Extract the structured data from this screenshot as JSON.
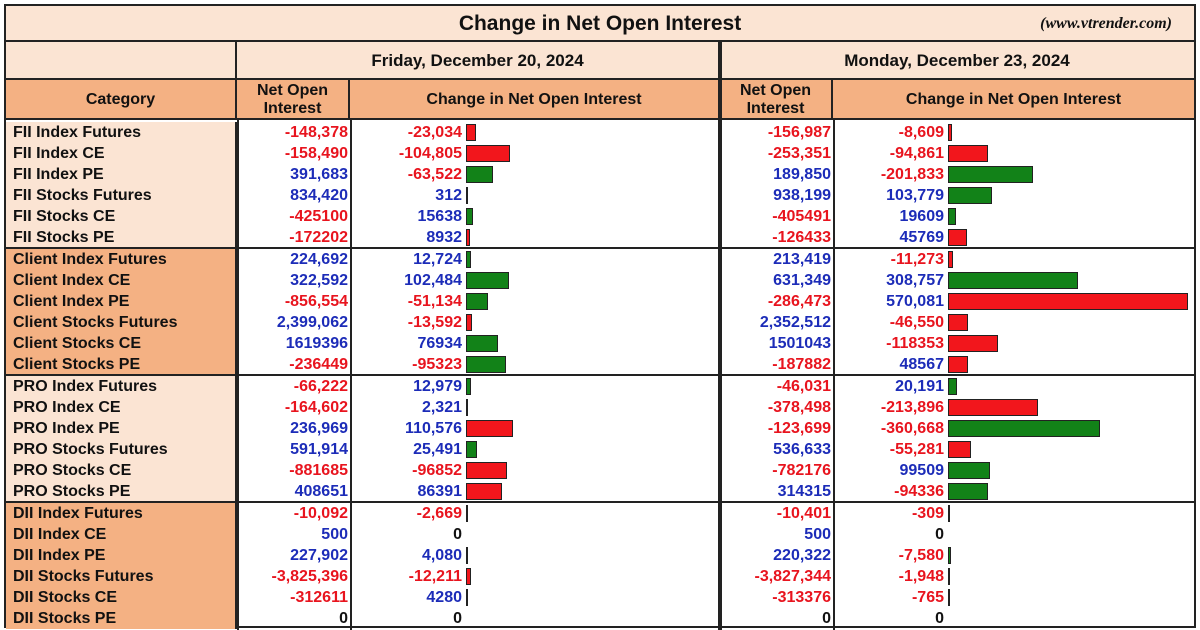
{
  "title": "Change in Net Open Interest",
  "site": "(www.vtrender.com)",
  "dates": [
    "Friday, December 20, 2024",
    "Monday, December 23, 2024"
  ],
  "headers": {
    "category": "Category",
    "net_oi": "Net Open Interest",
    "change": "Change in Net Open Interest"
  },
  "colors": {
    "header_light": "#fbe4d3",
    "header_orange": "#f4b183",
    "positive_text": "#1c2cb8",
    "negative_text": "#e8141e",
    "bar_positive_oi_effect": "#128218",
    "bar_negative_oi_effect": "#f2161c"
  },
  "chart_data": {
    "type": "table",
    "title": "Change in Net Open Interest",
    "columns": [
      "Category",
      "Net Open Interest (Dec 20)",
      "Change in Net Open Interest (Dec 20)",
      "Net Open Interest (Dec 23)",
      "Change in Net Open Interest (Dec 23)"
    ],
    "groups": [
      {
        "rows": [
          {
            "cat": "FII Index Futures",
            "oi1": "-148,378",
            "ch1": "-23,034",
            "oi2": "-156,987",
            "ch2": "-8,609"
          },
          {
            "cat": "FII Index CE",
            "oi1": "-158,490",
            "ch1": "-104,805",
            "oi2": "-253,351",
            "ch2": "-94,861"
          },
          {
            "cat": "FII Index PE",
            "oi1": "391,683",
            "ch1": "-63,522",
            "oi2": "189,850",
            "ch2": "-201,833"
          },
          {
            "cat": "FII Stocks Futures",
            "oi1": "834,420",
            "ch1": "312",
            "oi2": "938,199",
            "ch2": "103,779"
          },
          {
            "cat": "FII Stocks CE",
            "oi1": "-425100",
            "ch1": "15638",
            "oi2": "-405491",
            "ch2": "19609"
          },
          {
            "cat": "FII Stocks PE",
            "oi1": "-172202",
            "ch1": "8932",
            "oi2": "-126433",
            "ch2": "45769"
          }
        ]
      },
      {
        "rows": [
          {
            "cat": "Client Index Futures",
            "oi1": "224,692",
            "ch1": "12,724",
            "oi2": "213,419",
            "ch2": "-11,273"
          },
          {
            "cat": "Client Index CE",
            "oi1": "322,592",
            "ch1": "102,484",
            "oi2": "631,349",
            "ch2": "308,757"
          },
          {
            "cat": "Client Index PE",
            "oi1": "-856,554",
            "ch1": "-51,134",
            "oi2": "-286,473",
            "ch2": "570,081"
          },
          {
            "cat": "Client Stocks Futures",
            "oi1": "2,399,062",
            "ch1": "-13,592",
            "oi2": "2,352,512",
            "ch2": "-46,550"
          },
          {
            "cat": "Client Stocks CE",
            "oi1": "1619396",
            "ch1": "76934",
            "oi2": "1501043",
            "ch2": "-118353"
          },
          {
            "cat": "Client Stocks PE",
            "oi1": "-236449",
            "ch1": "-95323",
            "oi2": "-187882",
            "ch2": "48567"
          }
        ]
      },
      {
        "rows": [
          {
            "cat": "PRO Index Futures",
            "oi1": "-66,222",
            "ch1": "12,979",
            "oi2": "-46,031",
            "ch2": "20,191"
          },
          {
            "cat": "PRO Index CE",
            "oi1": "-164,602",
            "ch1": "2,321",
            "oi2": "-378,498",
            "ch2": "-213,896"
          },
          {
            "cat": "PRO Index PE",
            "oi1": "236,969",
            "ch1": "110,576",
            "oi2": "-123,699",
            "ch2": "-360,668"
          },
          {
            "cat": "PRO Stocks Futures",
            "oi1": "591,914",
            "ch1": "25,491",
            "oi2": "536,633",
            "ch2": "-55,281"
          },
          {
            "cat": "PRO Stocks CE",
            "oi1": "-881685",
            "ch1": "-96852",
            "oi2": "-782176",
            "ch2": "99509"
          },
          {
            "cat": "PRO Stocks PE",
            "oi1": "408651",
            "ch1": "86391",
            "oi2": "314315",
            "ch2": "-94336"
          }
        ]
      },
      {
        "rows": [
          {
            "cat": "DII Index Futures",
            "oi1": "-10,092",
            "ch1": "-2,669",
            "oi2": "-10,401",
            "ch2": "-309"
          },
          {
            "cat": "DII Index CE",
            "oi1": "500",
            "ch1": "0",
            "oi2": "500",
            "ch2": "0"
          },
          {
            "cat": "DII Index PE",
            "oi1": "227,902",
            "ch1": "4,080",
            "oi2": "220,322",
            "ch2": "-7,580"
          },
          {
            "cat": "DII Stocks Futures",
            "oi1": "-3,825,396",
            "ch1": "-12,211",
            "oi2": "-3,827,344",
            "ch2": "-1,948"
          },
          {
            "cat": "DII Stocks CE",
            "oi1": "-312611",
            "ch1": "4280",
            "oi2": "-313376",
            "ch2": "-765"
          },
          {
            "cat": "DII Stocks PE",
            "oi1": "0",
            "ch1": "0",
            "oi2": "0",
            "ch2": "0"
          }
        ]
      }
    ]
  }
}
